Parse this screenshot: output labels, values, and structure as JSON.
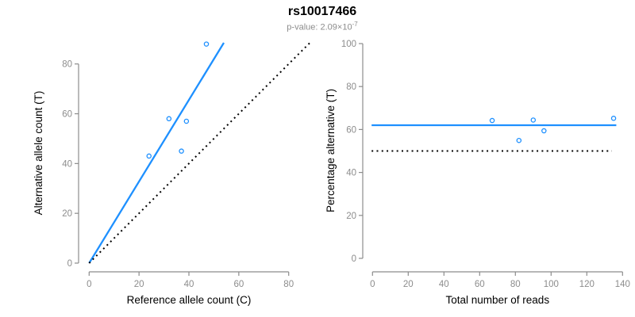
{
  "header": {
    "title": "rs10017466",
    "pvalue_label": "p-value: 2.09×10",
    "pvalue_exponent": "-7"
  },
  "colors": {
    "point_blue": "#1e90ff",
    "line_blue": "#1e90ff",
    "dotted_black": "#000000",
    "axis_gray": "#8c8c8c",
    "tick_text_gray": "#8c8c8c",
    "axis_title_black": "#000000",
    "background": "#ffffff"
  },
  "chart_data": [
    {
      "id": "allele-counts-scatter",
      "type": "scatter",
      "title": "",
      "xlabel": "Reference allele count (C)",
      "ylabel": "Alternative allele count (T)",
      "xlim": [
        0,
        80
      ],
      "ylim": [
        0,
        80
      ],
      "xticks": [
        0,
        20,
        40,
        60,
        80
      ],
      "yticks": [
        0,
        20,
        40,
        60,
        80
      ],
      "grid": false,
      "legend": "none",
      "points": [
        [
          24,
          43
        ],
        [
          32,
          58
        ],
        [
          37,
          45
        ],
        [
          39,
          57
        ],
        [
          47,
          88
        ]
      ],
      "lines": [
        {
          "name": "regression-line",
          "style": "solid",
          "color_key": "line_blue",
          "x1": 0,
          "y1": 0,
          "x2": 54,
          "y2": 88.5
        },
        {
          "name": "identity-line-50pct",
          "style": "dotted",
          "color_key": "dotted_black",
          "x1": 0,
          "y1": 0,
          "x2": 88.5,
          "y2": 88.5
        }
      ]
    },
    {
      "id": "percentage-vs-reads-scatter",
      "type": "scatter",
      "title": "",
      "xlabel": "Total number of reads",
      "ylabel": "Percentage alternative (T)",
      "xlim": [
        0,
        140
      ],
      "ylim": [
        0,
        100
      ],
      "xticks": [
        0,
        20,
        40,
        60,
        80,
        100,
        120,
        140
      ],
      "yticks": [
        0,
        20,
        40,
        60,
        80,
        100
      ],
      "grid": false,
      "legend": "none",
      "mean_percentage": 62,
      "null_percentage": 50,
      "points": [
        [
          67,
          64.2
        ],
        [
          82,
          54.9
        ],
        [
          90,
          64.4
        ],
        [
          96,
          59.4
        ],
        [
          135,
          65.2
        ]
      ],
      "lines": [
        {
          "name": "mean-percentage-line",
          "style": "solid",
          "color_key": "line_blue",
          "x1": -0.5,
          "y1": 62,
          "x2": 136.5,
          "y2": 62
        },
        {
          "name": "fifty-percent-line",
          "style": "dotted",
          "color_key": "dotted_black",
          "x1": -0.5,
          "y1": 50,
          "x2": 134,
          "y2": 50
        }
      ]
    }
  ]
}
